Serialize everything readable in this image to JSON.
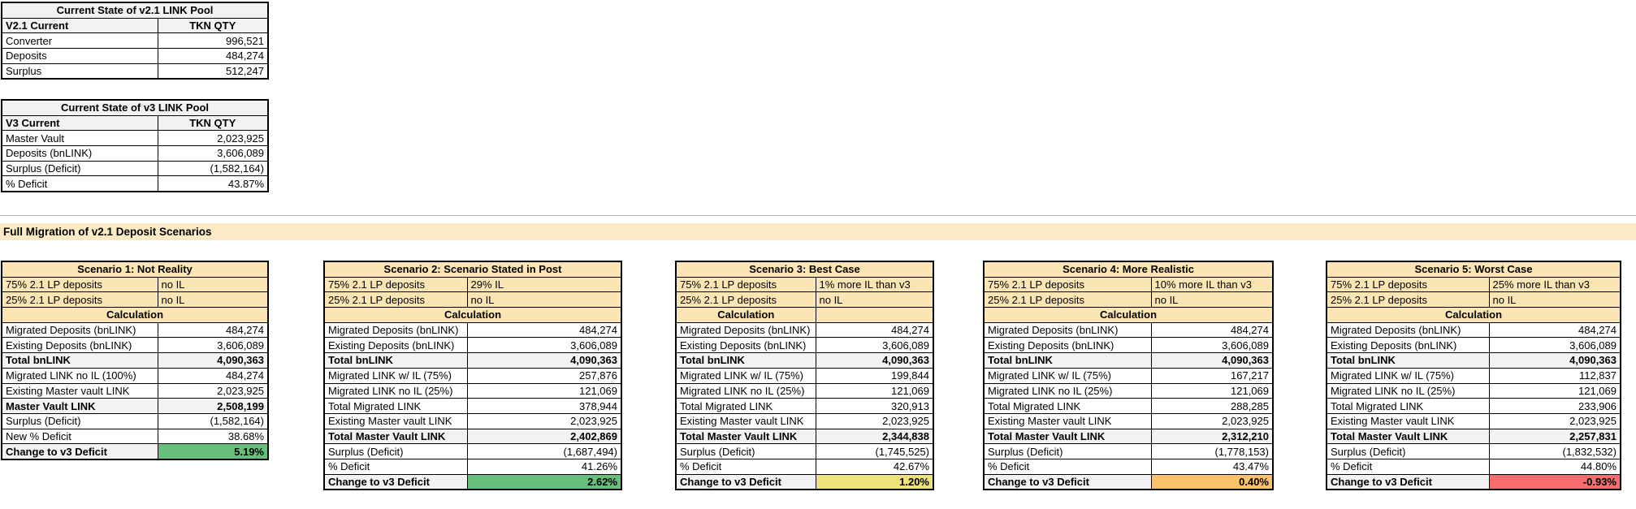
{
  "pool_tables": [
    {
      "title": "Current State of v2.1 LINK Pool",
      "header": [
        "V2.1 Current",
        "TKN QTY"
      ],
      "rows": [
        [
          "Converter",
          "996,521"
        ],
        [
          "Deposits",
          "484,274"
        ],
        [
          "Surplus",
          "512,247"
        ]
      ]
    },
    {
      "title": "Current State of v3 LINK Pool",
      "header": [
        "V3 Current",
        "TKN QTY"
      ],
      "rows": [
        [
          "Master Vault",
          "2,023,925"
        ],
        [
          "Deposits (bnLINK)",
          "3,606,089"
        ],
        [
          "Surplus (Deficit)",
          "(1,582,164)"
        ],
        [
          "% Deficit",
          "43.87%"
        ]
      ]
    }
  ],
  "section_banner": "Full Migration of v2.1 Deposit Scenarios",
  "scenarios": [
    {
      "title": "Scenario 1: Not Reality",
      "assumptions": [
        [
          "75% 2.1 LP deposits",
          "no IL"
        ],
        [
          "25% 2.1 LP deposits",
          "no IL"
        ]
      ],
      "calculation_label": "Calculation",
      "calculation_split": false,
      "rows": [
        {
          "label": "Migrated Deposits (bnLINK)",
          "value": "484,274",
          "style": "normal"
        },
        {
          "label": "Existing Deposits (bnLINK)",
          "value": "3,606,089",
          "style": "normal"
        },
        {
          "label": "Total bnLINK",
          "value": "4,090,363",
          "style": "total"
        },
        {
          "label": "Migrated LINK no IL (100%)",
          "value": "484,274",
          "style": "normal"
        },
        {
          "label": "Existing Master vault LINK",
          "value": "2,023,925",
          "style": "normal"
        },
        {
          "label": "Master Vault LINK",
          "value": "2,508,199",
          "style": "total"
        },
        {
          "label": "Surplus (Deficit)",
          "value": "(1,582,164)",
          "style": "normal"
        },
        {
          "label": "New % Deficit",
          "value": "38.68%",
          "style": "normal"
        },
        {
          "label": "Change to v3 Deficit",
          "value": "5.19%",
          "style": "change",
          "color": "green"
        }
      ]
    },
    {
      "title": "Scenario 2: Scenario Stated in Post",
      "assumptions": [
        [
          "75% 2.1 LP deposits",
          "29% IL"
        ],
        [
          "25% 2.1 LP deposits",
          "no IL"
        ]
      ],
      "calculation_label": "Calculation",
      "calculation_split": false,
      "rows": [
        {
          "label": "Migrated Deposits (bnLINK)",
          "value": "484,274",
          "style": "normal"
        },
        {
          "label": "Existing Deposits (bnLINK)",
          "value": "3,606,089",
          "style": "normal"
        },
        {
          "label": "Total bnLINK",
          "value": "4,090,363",
          "style": "total"
        },
        {
          "label": "Migrated LINK w/ IL (75%)",
          "value": "257,876",
          "style": "normal"
        },
        {
          "label": "Migrated LINK no IL (25%)",
          "value": "121,069",
          "style": "normal"
        },
        {
          "label": "Total Migrated LINK",
          "value": "378,944",
          "style": "normal"
        },
        {
          "label": "Existing Master vault LINK",
          "value": "2,023,925",
          "style": "normal"
        },
        {
          "label": "Total Master Vault LINK",
          "value": "2,402,869",
          "style": "total"
        },
        {
          "label": "Surplus (Deficit)",
          "value": "(1,687,494)",
          "style": "normal"
        },
        {
          "label": "% Deficit",
          "value": "41.26%",
          "style": "normal"
        },
        {
          "label": "Change to v3 Deficit",
          "value": "2.62%",
          "style": "change",
          "color": "green"
        }
      ]
    },
    {
      "title": "Scenario 3: Best Case",
      "assumptions": [
        [
          "75% 2.1 LP deposits",
          "1% more IL than v3"
        ],
        [
          "25% 2.1 LP deposits",
          "no IL"
        ]
      ],
      "calculation_label": "Calculation",
      "calculation_split": true,
      "rows": [
        {
          "label": "Migrated Deposits (bnLINK)",
          "value": "484,274",
          "style": "normal"
        },
        {
          "label": "Existing Deposits (bnLINK)",
          "value": "3,606,089",
          "style": "normal"
        },
        {
          "label": "Total bnLINK",
          "value": "4,090,363",
          "style": "total"
        },
        {
          "label": "Migrated LINK w/ IL (75%)",
          "value": "199,844",
          "style": "normal"
        },
        {
          "label": "Migrated LINK no IL (25%)",
          "value": "121,069",
          "style": "normal"
        },
        {
          "label": "Total Migrated LINK",
          "value": "320,913",
          "style": "normal"
        },
        {
          "label": "Existing Master vault LINK",
          "value": "2,023,925",
          "style": "normal"
        },
        {
          "label": "Total Master Vault LINK",
          "value": "2,344,838",
          "style": "total"
        },
        {
          "label": "Surplus (Deficit)",
          "value": "(1,745,525)",
          "style": "normal"
        },
        {
          "label": "% Deficit",
          "value": "42.67%",
          "style": "normal"
        },
        {
          "label": "Change to v3 Deficit",
          "value": "1.20%",
          "style": "change",
          "color": "yellow"
        }
      ]
    },
    {
      "title": "Scenario 4: More Realistic",
      "assumptions": [
        [
          "75% 2.1 LP deposits",
          "10% more IL than v3"
        ],
        [
          "25% 2.1 LP deposits",
          "no IL"
        ]
      ],
      "calculation_label": "Calculation",
      "calculation_split": false,
      "rows": [
        {
          "label": "Migrated Deposits (bnLINK)",
          "value": "484,274",
          "style": "normal"
        },
        {
          "label": "Existing Deposits (bnLINK)",
          "value": "3,606,089",
          "style": "normal"
        },
        {
          "label": "Total bnLINK",
          "value": "4,090,363",
          "style": "total"
        },
        {
          "label": "Migrated LINK w/ IL (75%)",
          "value": "167,217",
          "style": "normal"
        },
        {
          "label": "Migrated LINK no IL (25%)",
          "value": "121,069",
          "style": "normal"
        },
        {
          "label": "Total Migrated LINK",
          "value": "288,285",
          "style": "normal"
        },
        {
          "label": "Existing Master vault LINK",
          "value": "2,023,925",
          "style": "normal"
        },
        {
          "label": "Total Master Vault LINK",
          "value": "2,312,210",
          "style": "total"
        },
        {
          "label": "Surplus (Deficit)",
          "value": "(1,778,153)",
          "style": "normal"
        },
        {
          "label": "% Deficit",
          "value": "43.47%",
          "style": "normal"
        },
        {
          "label": "Change to v3 Deficit",
          "value": "0.40%",
          "style": "change",
          "color": "orange"
        }
      ]
    },
    {
      "title": "Scenario 5: Worst Case",
      "assumptions": [
        [
          "75% 2.1 LP deposits",
          "25% more IL than v3"
        ],
        [
          "25% 2.1 LP deposits",
          "no IL"
        ]
      ],
      "calculation_label": "Calculation",
      "calculation_split": false,
      "rows": [
        {
          "label": "Migrated Deposits (bnLINK)",
          "value": "484,274",
          "style": "normal"
        },
        {
          "label": "Existing Deposits (bnLINK)",
          "value": "3,606,089",
          "style": "normal"
        },
        {
          "label": "Total bnLINK",
          "value": "4,090,363",
          "style": "total"
        },
        {
          "label": "Migrated LINK w/ IL (75%)",
          "value": "112,837",
          "style": "normal"
        },
        {
          "label": "Migrated LINK no IL (25%)",
          "value": "121,069",
          "style": "normal"
        },
        {
          "label": "Total Migrated LINK",
          "value": "233,906",
          "style": "normal"
        },
        {
          "label": "Existing Master vault LINK",
          "value": "2,023,925",
          "style": "normal"
        },
        {
          "label": "Total Master Vault LINK",
          "value": "2,257,831",
          "style": "total"
        },
        {
          "label": "Surplus (Deficit)",
          "value": "(1,832,532)",
          "style": "normal"
        },
        {
          "label": "% Deficit",
          "value": "44.80%",
          "style": "normal"
        },
        {
          "label": "Change to v3 Deficit",
          "value": "-0.93%",
          "style": "change",
          "color": "red"
        }
      ]
    }
  ],
  "colors": {
    "green": "#68bf7c",
    "yellow": "#ede27c",
    "orange": "#fbc26c",
    "red": "#f66d6e",
    "total_gray": "#f2f2f2",
    "header_cream": "#fce5b4",
    "banner_cream": "#fbeac5"
  }
}
